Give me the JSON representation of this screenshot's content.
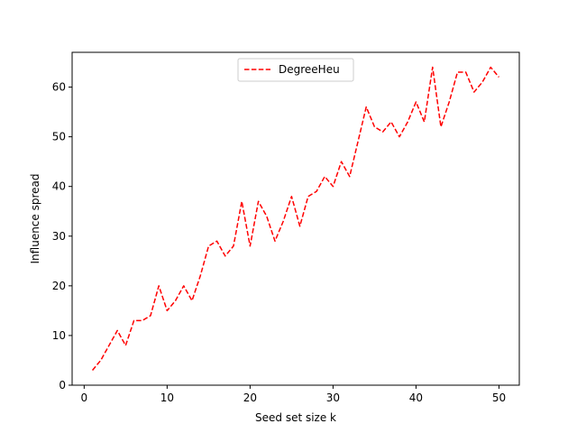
{
  "chart_data": {
    "type": "line",
    "title": "",
    "xlabel": "Seed set size k",
    "ylabel": "Influence spread",
    "xlim": [
      -1.45,
      52.45
    ],
    "ylim": [
      0,
      67
    ],
    "xticks": [
      0,
      10,
      20,
      30,
      40,
      50
    ],
    "yticks": [
      0,
      10,
      20,
      30,
      40,
      50,
      60
    ],
    "grid": false,
    "legend_position": "top-center",
    "series": [
      {
        "name": "DegreeHeu",
        "color": "#ff0000",
        "line_style": "dashed",
        "x": [
          1,
          2,
          3,
          4,
          5,
          6,
          7,
          8,
          9,
          10,
          11,
          12,
          13,
          14,
          15,
          16,
          17,
          18,
          19,
          20,
          21,
          22,
          23,
          24,
          25,
          26,
          27,
          28,
          29,
          30,
          31,
          32,
          33,
          34,
          35,
          36,
          37,
          38,
          39,
          40,
          41,
          42,
          43,
          44,
          45,
          46,
          47,
          48,
          49,
          50
        ],
        "y": [
          3,
          5,
          8,
          11,
          8,
          13,
          13,
          14,
          20,
          15,
          17,
          20,
          17,
          22,
          28,
          29,
          26,
          28,
          37,
          28,
          37,
          34,
          29,
          33,
          38,
          32,
          38,
          39,
          42,
          40,
          45,
          42,
          49,
          56,
          52,
          51,
          53,
          50,
          53,
          57,
          53,
          64,
          52,
          57,
          63,
          63,
          59,
          61,
          64,
          62
        ]
      }
    ]
  }
}
